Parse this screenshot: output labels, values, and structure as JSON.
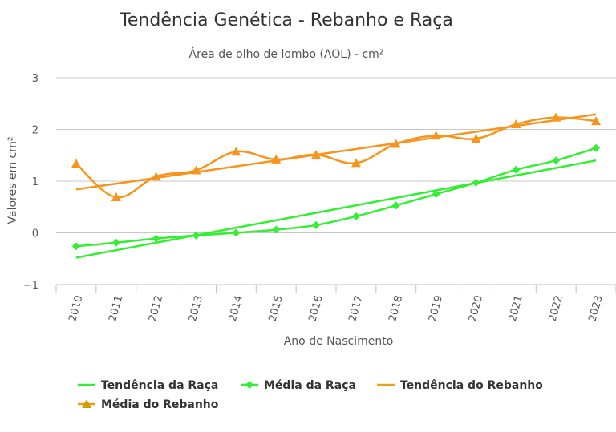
{
  "chart_data": {
    "type": "line",
    "title": "Tendência Genética - Rebanho e Raça",
    "subtitle": "Área de olho de lombo (AOL) - cm²",
    "xlabel": "Ano de Nascimento",
    "ylabel": "Valores em cm²",
    "ylim": [
      -1,
      3
    ],
    "yticks": [
      "−1",
      "0",
      "1",
      "2",
      "3"
    ],
    "categories": [
      "2010",
      "2011",
      "2012",
      "2013",
      "2014",
      "2015",
      "2016",
      "2017",
      "2018",
      "2019",
      "2020",
      "2021",
      "2022",
      "2023"
    ],
    "grid": true,
    "legend_position": "bottom",
    "series": [
      {
        "name": "Tendência da Raça",
        "kind": "trend",
        "color": "#33ee33",
        "values": [
          -0.48,
          -0.34,
          -0.19,
          -0.05,
          0.09,
          0.24,
          0.38,
          0.52,
          0.67,
          0.81,
          0.96,
          1.1,
          1.25,
          1.4
        ]
      },
      {
        "name": "Média da Raça",
        "kind": "markers",
        "marker": "diamond",
        "color": "#33ee33",
        "values": [
          -0.26,
          -0.19,
          -0.11,
          -0.05,
          0.0,
          0.06,
          0.15,
          0.32,
          0.53,
          0.75,
          0.97,
          1.22,
          1.4,
          1.64
        ]
      },
      {
        "name": "Tendência do Rebanho",
        "kind": "trend",
        "color": "#f7941d",
        "values": [
          0.84,
          0.95,
          1.06,
          1.17,
          1.28,
          1.4,
          1.51,
          1.62,
          1.73,
          1.84,
          1.95,
          2.06,
          2.17,
          2.29
        ]
      },
      {
        "name": "Média do Rebanho",
        "kind": "markers",
        "marker": "triangle",
        "color": "#f7941d",
        "values": [
          1.34,
          0.69,
          1.09,
          1.21,
          1.57,
          1.42,
          1.51,
          1.35,
          1.72,
          1.88,
          1.82,
          2.1,
          2.23,
          2.16
        ]
      }
    ]
  }
}
